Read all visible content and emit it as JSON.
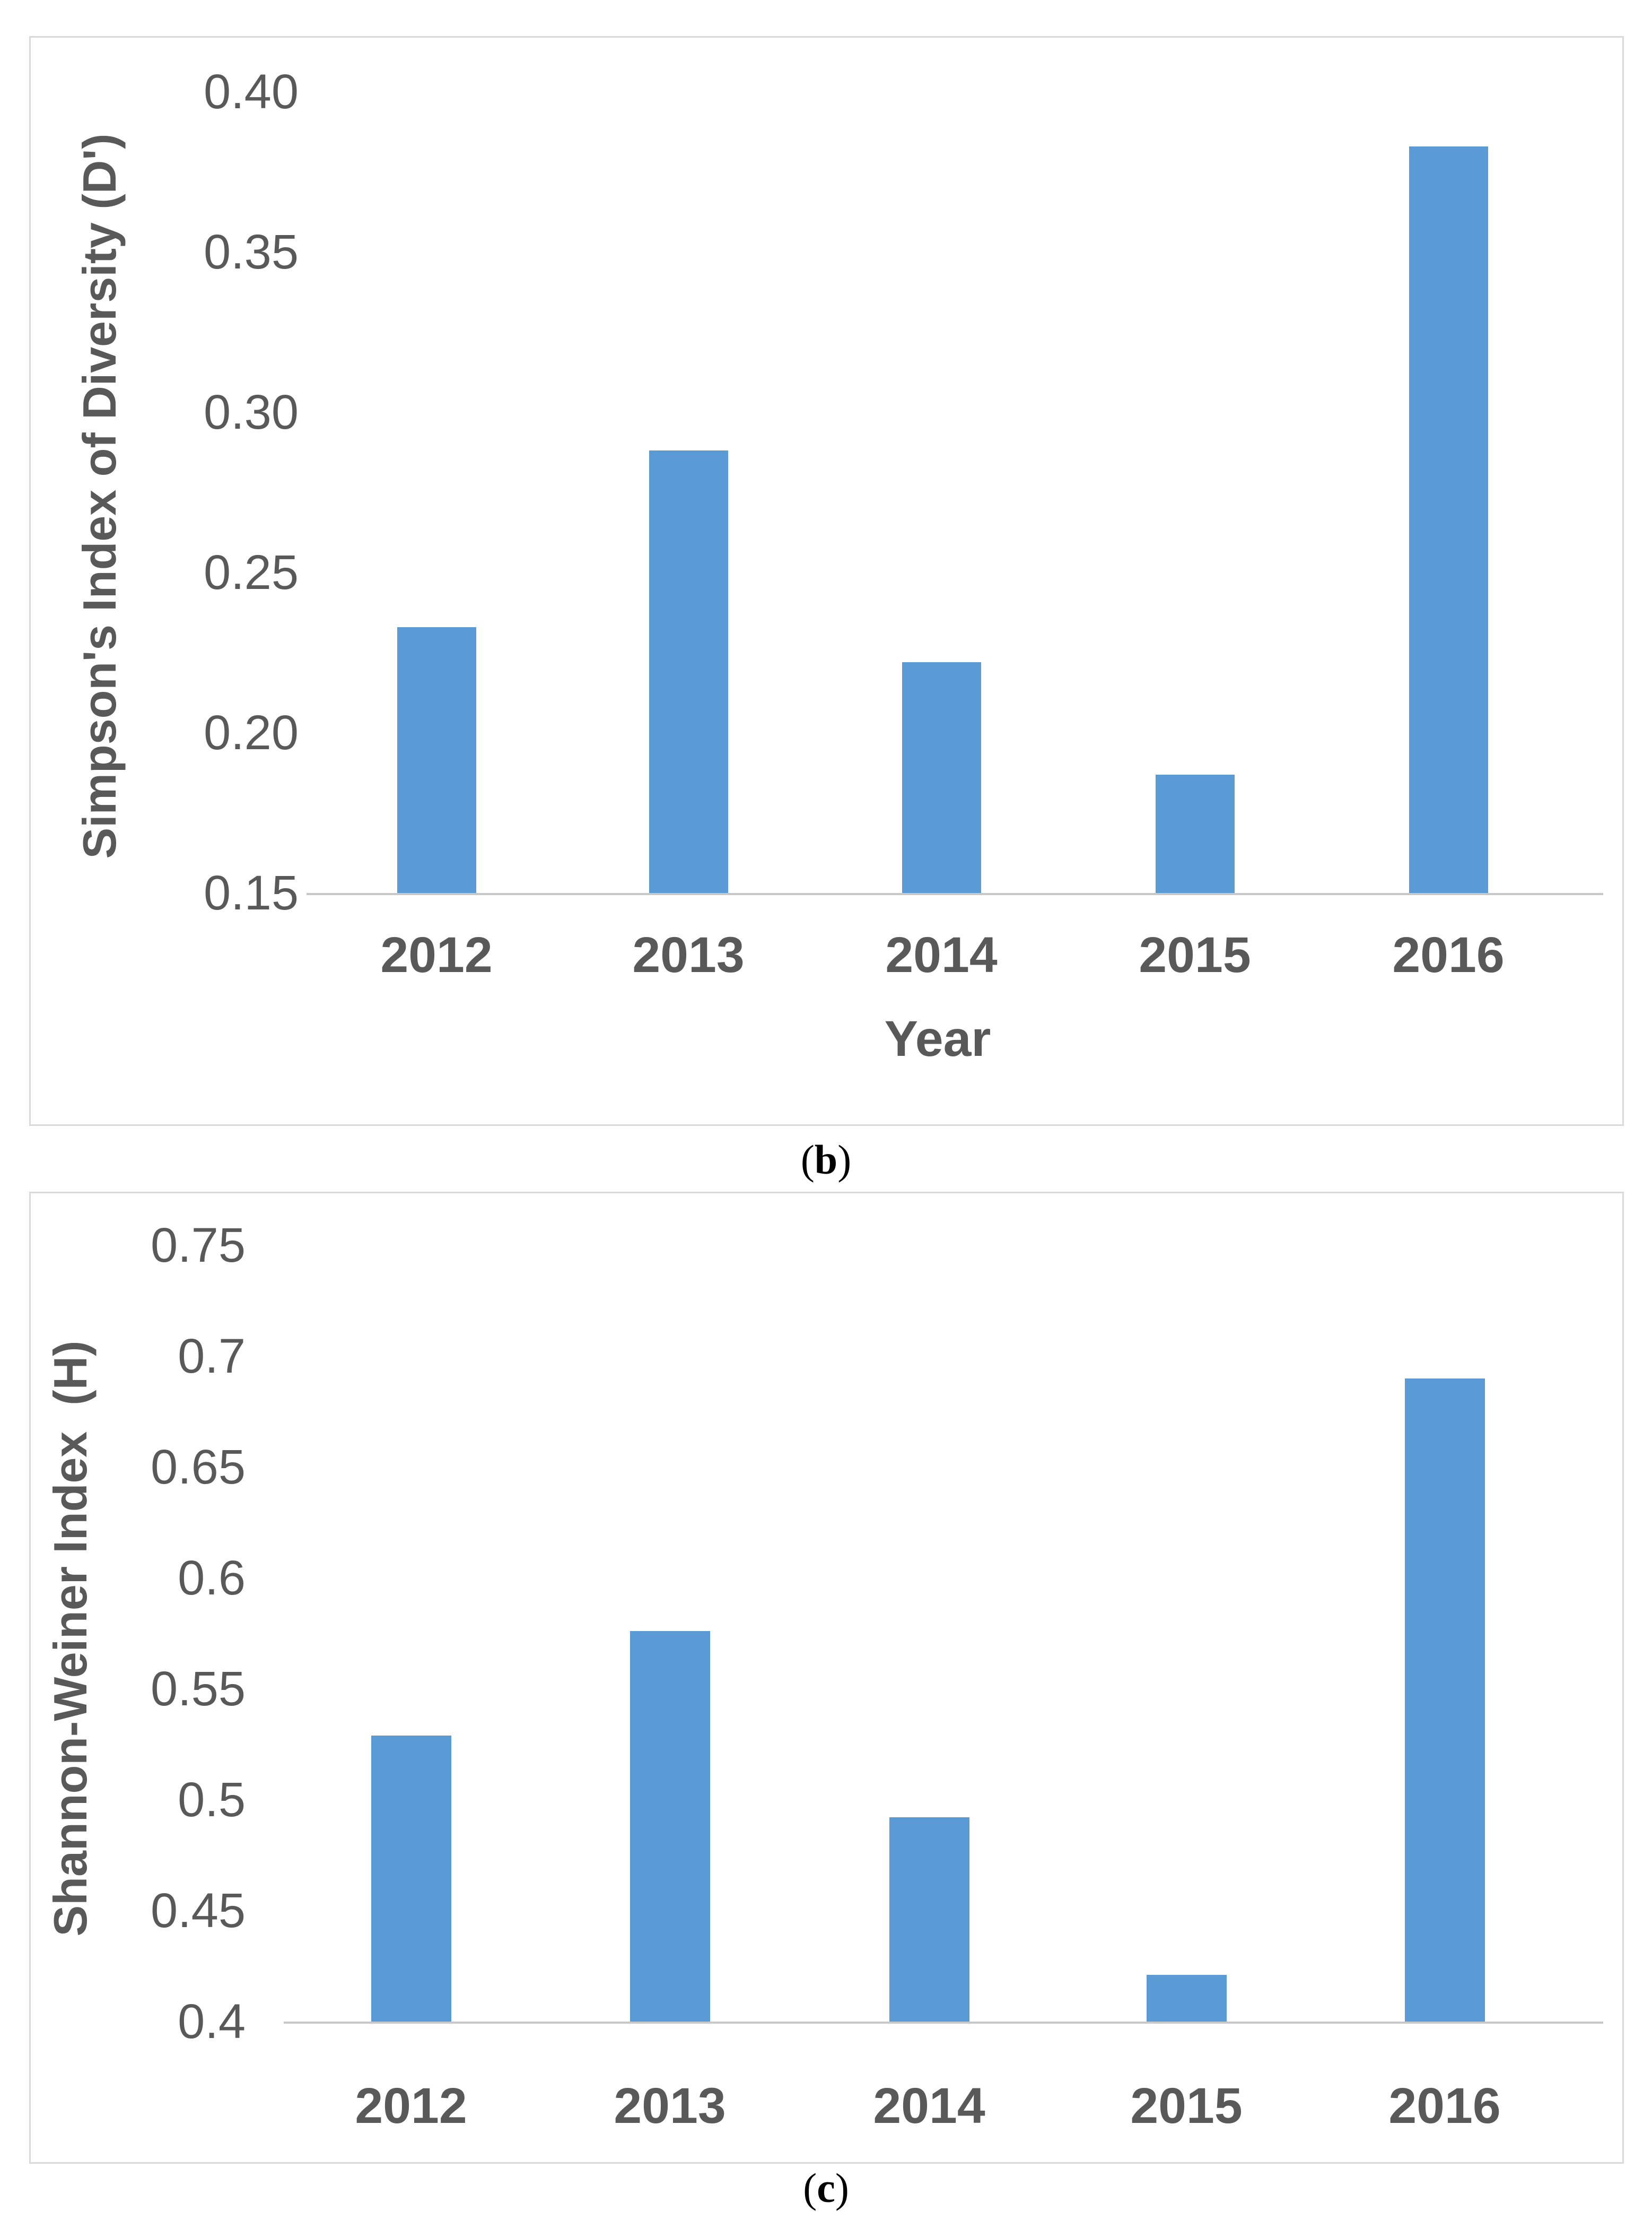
{
  "figure": {
    "captions": [
      {
        "open": "(",
        "letter": "b",
        "close": ")"
      },
      {
        "open": "(",
        "letter": "c",
        "close": ")"
      }
    ]
  },
  "chart_data": [
    {
      "type": "bar",
      "panel": "b",
      "title": "",
      "categories": [
        "2012",
        "2013",
        "2014",
        "2015",
        "2016"
      ],
      "values": [
        0.233,
        0.288,
        0.222,
        0.187,
        0.383
      ],
      "xlabel": "Year",
      "ylabel": "Simpson's Index of Diversity (D')",
      "ylim": [
        0.15,
        0.4
      ],
      "ytick_step": 0.05,
      "ytick_labels": [
        "0.15",
        "0.20",
        "0.25",
        "0.30",
        "0.35",
        "0.40"
      ],
      "bar_color": "#5b9bd5",
      "axis_line_color": "#c8c8c8",
      "text_color": "#595959",
      "grid": false,
      "legend": null
    },
    {
      "type": "bar",
      "panel": "c",
      "title": "",
      "categories": [
        "2012",
        "2013",
        "2014",
        "2015",
        "2016"
      ],
      "values": [
        0.529,
        0.576,
        0.492,
        0.421,
        0.69
      ],
      "xlabel": "",
      "ylabel": "Shannon-Weiner Index  (H)",
      "ylim": [
        0.4,
        0.75
      ],
      "ytick_step": 0.05,
      "ytick_labels": [
        "0.4",
        "0.45",
        "0.5",
        "0.55",
        "0.6",
        "0.65",
        "0.7",
        "0.75"
      ],
      "bar_color": "#5b9bd5",
      "axis_line_color": "#c8c8c8",
      "text_color": "#595959",
      "grid": false,
      "legend": null
    }
  ]
}
